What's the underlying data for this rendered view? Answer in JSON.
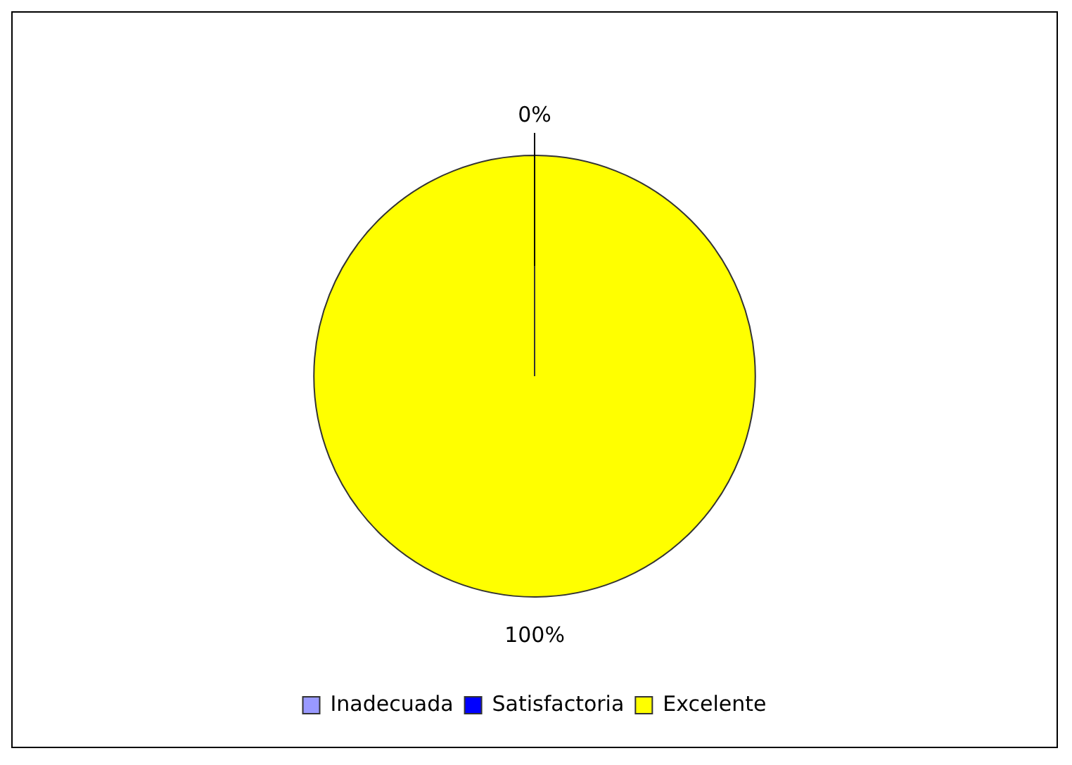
{
  "chart_data": {
    "type": "pie",
    "categories": [
      "Inadecuada",
      "Satisfactoria",
      "Excelente"
    ],
    "values": [
      0,
      0,
      100
    ],
    "colors": [
      "#9999ff",
      "#0000ff",
      "#ffff00"
    ],
    "value_labels": [
      "0%",
      null,
      "100%"
    ],
    "legend": "bottom"
  }
}
